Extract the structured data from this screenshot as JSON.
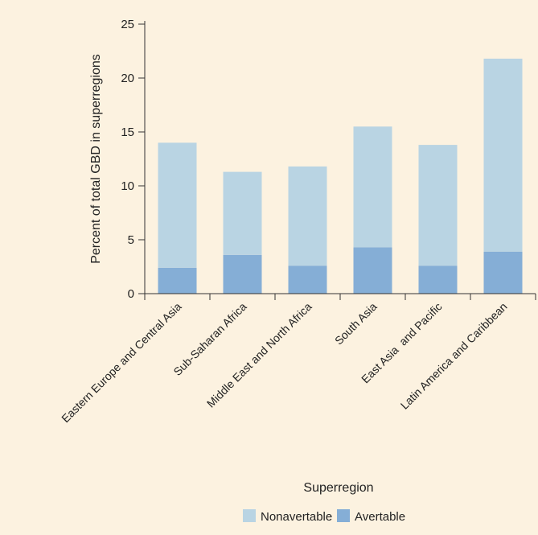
{
  "chart_data": {
    "type": "bar",
    "stacked": true,
    "categories": [
      "Eastern Europe and Central Asia",
      "Sub-Saharan Africa",
      "Middle East and North Africa",
      "South Asia",
      "East Asia  and Pacific",
      "Latin America and Caribbean"
    ],
    "series": [
      {
        "name": "Avertable",
        "values": [
          2.4,
          3.6,
          2.6,
          4.3,
          2.6,
          3.9
        ],
        "color": "#85aed6"
      },
      {
        "name": "Nonavertable",
        "values": [
          11.6,
          7.7,
          9.2,
          11.2,
          11.2,
          17.9
        ],
        "color": "#b9d4e3"
      }
    ],
    "totals": [
      14.0,
      11.3,
      11.8,
      15.5,
      13.8,
      21.8
    ],
    "xlabel": "Superregion",
    "ylabel": "Percent of total GBD in superregions",
    "ylim": [
      0,
      25
    ],
    "yticks": [
      0,
      5,
      10,
      15,
      20,
      25
    ],
    "grid": false,
    "legend": {
      "position": "bottom",
      "order": [
        "Nonavertable",
        "Avertable"
      ]
    },
    "background": "#fcf2e0"
  }
}
